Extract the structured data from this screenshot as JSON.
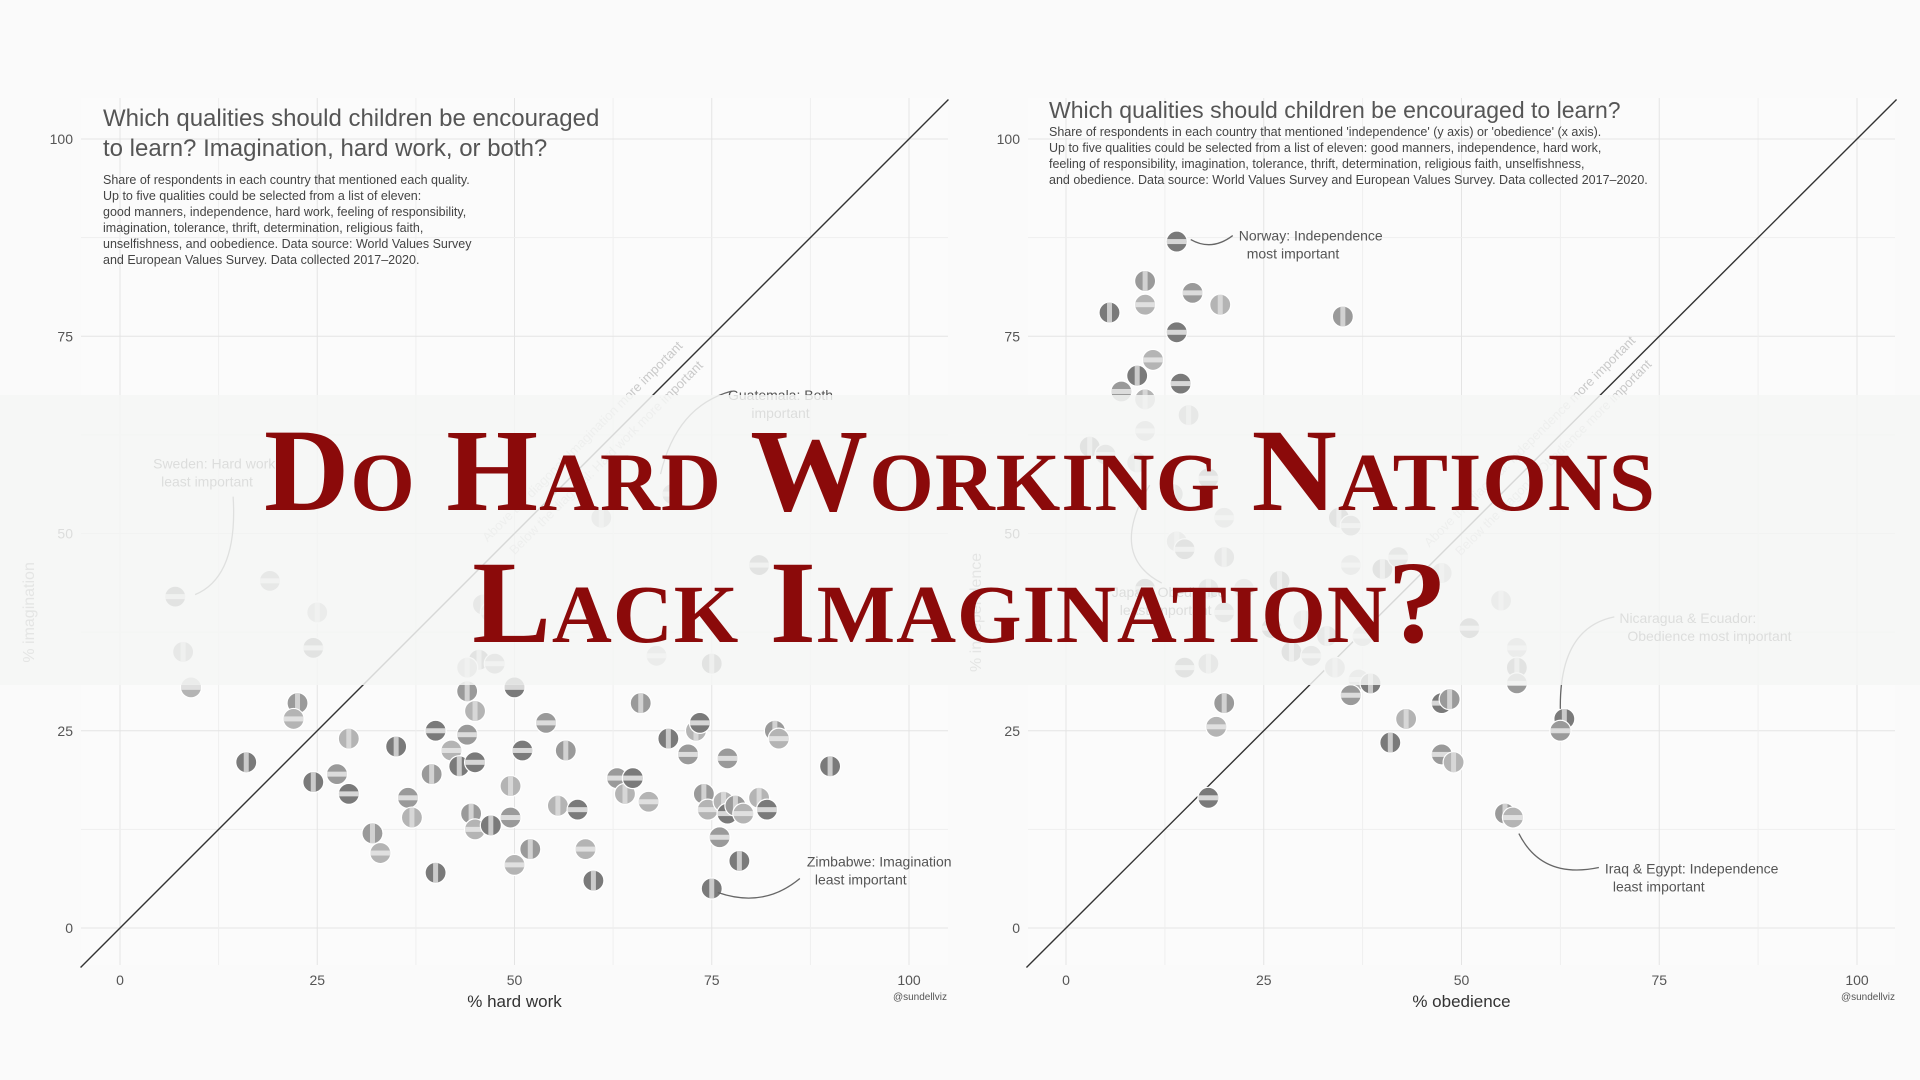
{
  "headline": {
    "line1": "Do Hard Working Nations",
    "line2": "Lack Imagination?"
  },
  "colors": {
    "headline": "#8b0a0a",
    "banner": "#f5f6f5",
    "marker": "#8c8c8c",
    "grid": "#e6e6e6",
    "diagonal": "#333333"
  },
  "left_panel": {
    "title_line1": "Which qualities should children be encouraged",
    "title_line2": "to learn? Imagination, hard work, or both?",
    "subtitle_lines": [
      "Share of respondents in each country that mentioned each quality.",
      "Up to five qualities could be selected from a list of eleven:",
      "good manners, independence, hard work, feeling of responsibility,",
      "imagination, tolerance, thrift, determination, religious faith,",
      "unselfishness, and oobedience. Data source: World Values Survey",
      "and European Values Survey. Data collected 2017–2020."
    ],
    "credit": "@sundellviz"
  },
  "right_panel": {
    "title": "Which qualities should children be encouraged to learn?",
    "subtitle_lines": [
      "Share of respondents in each country that mentioned 'independence' (y axis) or 'obedience' (x axis).",
      "Up to five qualities could be selected from a list of eleven: good manners, independence, hard work,",
      "feeling of responsibility, imagination, tolerance, thrift, determination, religious faith, unselfishness,",
      "and obedience. Data source: World Values Survey and European Values Survey. Data collected 2017–2020."
    ],
    "credit": "@sundellviz"
  },
  "chart_data": [
    {
      "type": "scatter",
      "xlabel": "% hard work",
      "ylabel": "% imagination",
      "xlim": [
        -5,
        105
      ],
      "ylim": [
        -5,
        100
      ],
      "xticks": [
        "0",
        "25",
        "50",
        "75",
        "100"
      ],
      "yticks": [
        "0",
        "25",
        "50",
        "75",
        "100"
      ],
      "grid": true,
      "diagonal": "y = x",
      "diagonal_labels": [
        "Above the diagonal: Imagination more important",
        "Below the diagonal: Hard work more important"
      ],
      "annotations": [
        {
          "lines": [
            "Sweden: Hard work",
            "least important"
          ],
          "x": 8,
          "y": 42
        },
        {
          "lines": [
            "Guatemala: Both",
            "important"
          ],
          "x": 68,
          "y": 56
        },
        {
          "lines": [
            "Zimbabwe: Imagination",
            "least important"
          ],
          "x": 74,
          "y": 5
        }
      ],
      "points": [
        {
          "x": 7,
          "y": 42
        },
        {
          "x": 8,
          "y": 35
        },
        {
          "x": 9,
          "y": 30.5
        },
        {
          "x": 16,
          "y": 21
        },
        {
          "x": 19,
          "y": 44
        },
        {
          "x": 25,
          "y": 40
        },
        {
          "x": 24.5,
          "y": 35.5
        },
        {
          "x": 22.5,
          "y": 28.5
        },
        {
          "x": 22,
          "y": 26.5
        },
        {
          "x": 24.5,
          "y": 18.5
        },
        {
          "x": 27.5,
          "y": 19.5
        },
        {
          "x": 29,
          "y": 24
        },
        {
          "x": 29,
          "y": 17
        },
        {
          "x": 32,
          "y": 12
        },
        {
          "x": 33,
          "y": 9.5
        },
        {
          "x": 35,
          "y": 23
        },
        {
          "x": 36.5,
          "y": 16.5
        },
        {
          "x": 37,
          "y": 14
        },
        {
          "x": 40,
          "y": 25
        },
        {
          "x": 39.5,
          "y": 19.5
        },
        {
          "x": 42,
          "y": 22.5
        },
        {
          "x": 43,
          "y": 20.5
        },
        {
          "x": 44,
          "y": 24.5
        },
        {
          "x": 45,
          "y": 27.5
        },
        {
          "x": 45,
          "y": 21
        },
        {
          "x": 44.5,
          "y": 14.5
        },
        {
          "x": 45,
          "y": 12.5
        },
        {
          "x": 47,
          "y": 13
        },
        {
          "x": 49.5,
          "y": 14
        },
        {
          "x": 49.5,
          "y": 18
        },
        {
          "x": 51,
          "y": 22.5
        },
        {
          "x": 52,
          "y": 10
        },
        {
          "x": 50,
          "y": 8
        },
        {
          "x": 40,
          "y": 7
        },
        {
          "x": 54,
          "y": 26
        },
        {
          "x": 55.5,
          "y": 15.5
        },
        {
          "x": 58,
          "y": 15
        },
        {
          "x": 56.5,
          "y": 22.5
        },
        {
          "x": 59,
          "y": 10
        },
        {
          "x": 60,
          "y": 6
        },
        {
          "x": 63,
          "y": 19
        },
        {
          "x": 64,
          "y": 17
        },
        {
          "x": 65,
          "y": 19
        },
        {
          "x": 66,
          "y": 28.5
        },
        {
          "x": 67,
          "y": 16
        },
        {
          "x": 69.5,
          "y": 24
        },
        {
          "x": 72,
          "y": 22
        },
        {
          "x": 73,
          "y": 25
        },
        {
          "x": 73.5,
          "y": 26
        },
        {
          "x": 74,
          "y": 17
        },
        {
          "x": 74.5,
          "y": 15
        },
        {
          "x": 75,
          "y": 5
        },
        {
          "x": 76,
          "y": 11.5
        },
        {
          "x": 76.5,
          "y": 16
        },
        {
          "x": 77,
          "y": 14.5
        },
        {
          "x": 78,
          "y": 15.5
        },
        {
          "x": 79,
          "y": 14.5
        },
        {
          "x": 78.5,
          "y": 8.5
        },
        {
          "x": 77,
          "y": 21.5
        },
        {
          "x": 81,
          "y": 16.5
        },
        {
          "x": 82,
          "y": 15
        },
        {
          "x": 83,
          "y": 25
        },
        {
          "x": 83.5,
          "y": 24
        },
        {
          "x": 90,
          "y": 20.5
        },
        {
          "x": 70,
          "y": 55
        },
        {
          "x": 61,
          "y": 52
        },
        {
          "x": 81,
          "y": 46
        },
        {
          "x": 46,
          "y": 41
        },
        {
          "x": 47,
          "y": 40
        },
        {
          "x": 45.5,
          "y": 34
        },
        {
          "x": 47.5,
          "y": 33.5
        },
        {
          "x": 44,
          "y": 33
        },
        {
          "x": 50,
          "y": 30.5
        },
        {
          "x": 44,
          "y": 30
        },
        {
          "x": 68,
          "y": 34.5
        },
        {
          "x": 75,
          "y": 33.5
        }
      ]
    },
    {
      "type": "scatter",
      "xlabel": "% obedience",
      "ylabel": "% independence",
      "xlim": [
        -5,
        105
      ],
      "ylim": [
        -5,
        100
      ],
      "xticks": [
        "0",
        "25",
        "50",
        "75",
        "100"
      ],
      "yticks": [
        "0",
        "25",
        "50",
        "75",
        "100"
      ],
      "grid": true,
      "diagonal": "y = x",
      "diagonal_labels": [
        "Above the diagonal: Independence more important",
        "Below the diagonal: Obedience more important"
      ],
      "annotations": [
        {
          "lines": [
            "Norway: Independence",
            "most important"
          ],
          "x": 14,
          "y": 87
        },
        {
          "lines": [
            "Japan: Obedience",
            "least important"
          ],
          "x": 3,
          "y": 46
        },
        {
          "lines": [
            "Nicaragua & Ecuador:",
            "Obedience most important"
          ],
          "x": 63,
          "y": 26
        },
        {
          "lines": [
            "Iraq & Egypt: Independence",
            "least important"
          ],
          "x": 57,
          "y": 14
        }
      ],
      "points": [
        {
          "x": 14,
          "y": 87
        },
        {
          "x": 10,
          "y": 82
        },
        {
          "x": 10,
          "y": 79
        },
        {
          "x": 5.5,
          "y": 78
        },
        {
          "x": 16,
          "y": 80.5
        },
        {
          "x": 19.5,
          "y": 79
        },
        {
          "x": 14,
          "y": 75.5
        },
        {
          "x": 35,
          "y": 77.5
        },
        {
          "x": 11,
          "y": 72
        },
        {
          "x": 9,
          "y": 70
        },
        {
          "x": 7,
          "y": 68
        },
        {
          "x": 10,
          "y": 67
        },
        {
          "x": 14.5,
          "y": 69
        },
        {
          "x": 15.5,
          "y": 65
        },
        {
          "x": 10,
          "y": 63
        },
        {
          "x": 3,
          "y": 61
        },
        {
          "x": 5,
          "y": 60
        },
        {
          "x": 9,
          "y": 59
        },
        {
          "x": 18,
          "y": 57
        },
        {
          "x": 13.5,
          "y": 55
        },
        {
          "x": 20,
          "y": 52
        },
        {
          "x": 34.5,
          "y": 52
        },
        {
          "x": 36,
          "y": 51
        },
        {
          "x": 14,
          "y": 49
        },
        {
          "x": 15,
          "y": 48
        },
        {
          "x": 20,
          "y": 47
        },
        {
          "x": 36,
          "y": 46
        },
        {
          "x": 40,
          "y": 45.5
        },
        {
          "x": 42,
          "y": 47
        },
        {
          "x": 47.5,
          "y": 45
        },
        {
          "x": 10,
          "y": 43
        },
        {
          "x": 18,
          "y": 43
        },
        {
          "x": 22.5,
          "y": 43
        },
        {
          "x": 27,
          "y": 44
        },
        {
          "x": 20,
          "y": 40
        },
        {
          "x": 30,
          "y": 39
        },
        {
          "x": 26,
          "y": 38
        },
        {
          "x": 33,
          "y": 37
        },
        {
          "x": 37.5,
          "y": 37
        },
        {
          "x": 28.5,
          "y": 35
        },
        {
          "x": 31,
          "y": 34.5
        },
        {
          "x": 34,
          "y": 33
        },
        {
          "x": 15,
          "y": 33
        },
        {
          "x": 18,
          "y": 33.5
        },
        {
          "x": 37,
          "y": 31.5
        },
        {
          "x": 38.5,
          "y": 31
        },
        {
          "x": 36,
          "y": 29.5
        },
        {
          "x": 43,
          "y": 26.5
        },
        {
          "x": 47.5,
          "y": 28.5
        },
        {
          "x": 48.5,
          "y": 29
        },
        {
          "x": 57,
          "y": 35.5
        },
        {
          "x": 57,
          "y": 33
        },
        {
          "x": 57,
          "y": 31
        },
        {
          "x": 55,
          "y": 41.5
        },
        {
          "x": 51,
          "y": 38
        },
        {
          "x": 20,
          "y": 28.5
        },
        {
          "x": 19,
          "y": 25.5
        },
        {
          "x": 41,
          "y": 23.5
        },
        {
          "x": 47.5,
          "y": 22
        },
        {
          "x": 49,
          "y": 21
        },
        {
          "x": 18,
          "y": 16.5
        },
        {
          "x": 55.5,
          "y": 14.5
        },
        {
          "x": 56.5,
          "y": 14
        },
        {
          "x": 63,
          "y": 26.5
        },
        {
          "x": 62.5,
          "y": 25
        }
      ]
    }
  ]
}
